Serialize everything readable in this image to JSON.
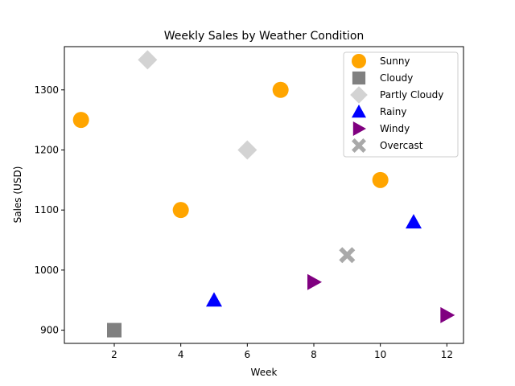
{
  "chart_data": {
    "type": "scatter",
    "title": "Weekly Sales by Weather Condition",
    "xlabel": "Week",
    "ylabel": "Sales (USD)",
    "xlim": [
      0.5,
      12.5
    ],
    "ylim": [
      878,
      1372
    ],
    "xticks": [
      2,
      4,
      6,
      8,
      10,
      12
    ],
    "yticks": [
      900,
      1000,
      1100,
      1200,
      1300
    ],
    "grid": false,
    "legend_position": "top-right",
    "series": [
      {
        "name": "Sunny",
        "marker": "circle",
        "color": "#FFA500",
        "points": [
          [
            1,
            1250
          ],
          [
            4,
            1100
          ],
          [
            7,
            1300
          ],
          [
            10,
            1150
          ]
        ]
      },
      {
        "name": "Cloudy",
        "marker": "square",
        "color": "#808080",
        "points": [
          [
            2,
            900
          ]
        ]
      },
      {
        "name": "Partly Cloudy",
        "marker": "diamond",
        "color": "#D3D3D3",
        "points": [
          [
            3,
            1350
          ],
          [
            6,
            1200
          ]
        ]
      },
      {
        "name": "Rainy",
        "marker": "triangle-up",
        "color": "#0000FF",
        "points": [
          [
            5,
            950
          ],
          [
            11,
            1080
          ]
        ]
      },
      {
        "name": "Windy",
        "marker": "triangle-right",
        "color": "#800080",
        "points": [
          [
            8,
            980
          ],
          [
            12,
            925
          ]
        ]
      },
      {
        "name": "Overcast",
        "marker": "x-filled",
        "color": "#A9A9A9",
        "points": [
          [
            9,
            1025
          ]
        ]
      }
    ]
  }
}
